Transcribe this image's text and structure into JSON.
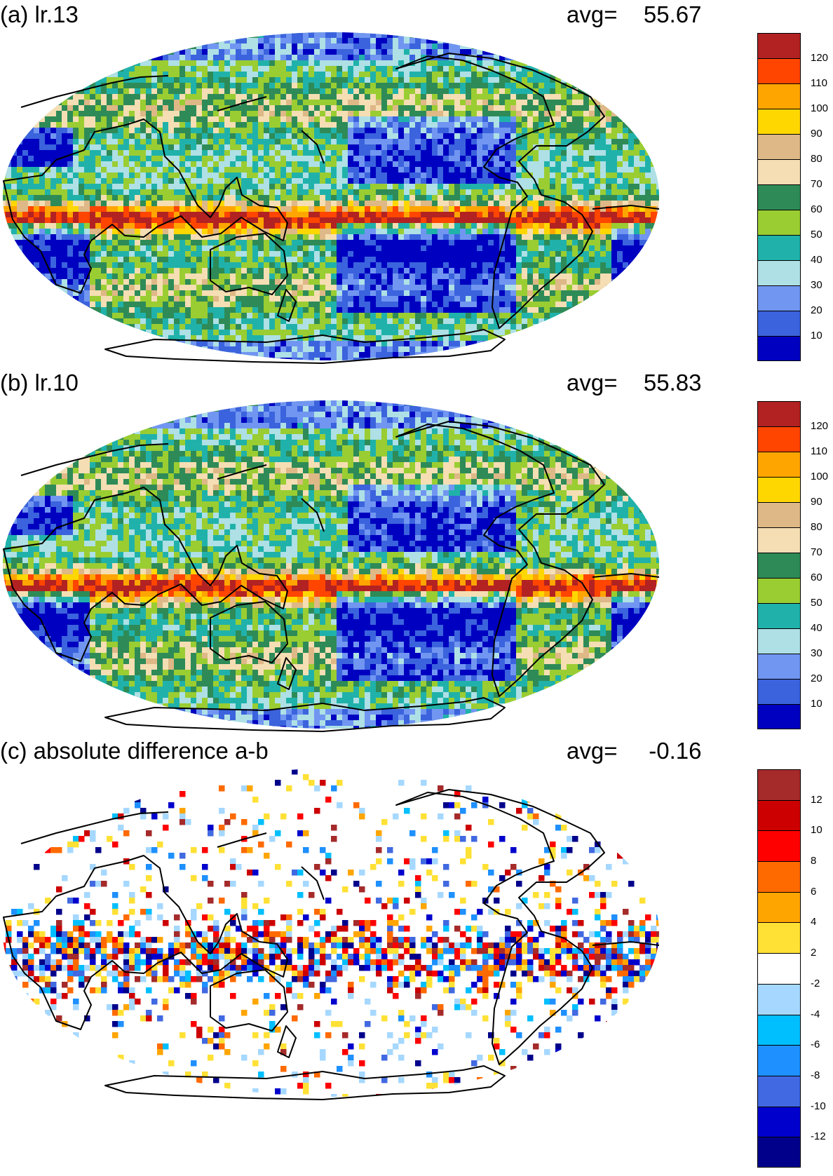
{
  "panels": [
    {
      "id": "a",
      "title": "(a) lr.13",
      "avg_label": "avg=",
      "avg_value": "55.67",
      "kind": "field",
      "colorbar": {
        "colors": [
          "#0000c0",
          "#3b63dd",
          "#7196f1",
          "#aee0e6",
          "#20b2aa",
          "#9acd32",
          "#2e8b57",
          "#f5deb3",
          "#deb887",
          "#ffd700",
          "#ffa500",
          "#ff4500",
          "#b22222"
        ],
        "ticks": [
          "10",
          "20",
          "30",
          "40",
          "50",
          "60",
          "70",
          "80",
          "90",
          "100",
          "110",
          "120"
        ]
      }
    },
    {
      "id": "b",
      "title": "(b) lr.10",
      "avg_label": "avg=",
      "avg_value": "55.83",
      "kind": "field",
      "colorbar": {
        "colors": [
          "#0000c0",
          "#3b63dd",
          "#7196f1",
          "#aee0e6",
          "#20b2aa",
          "#9acd32",
          "#2e8b57",
          "#f5deb3",
          "#deb887",
          "#ffd700",
          "#ffa500",
          "#ff4500",
          "#b22222"
        ],
        "ticks": [
          "10",
          "20",
          "30",
          "40",
          "50",
          "60",
          "70",
          "80",
          "90",
          "100",
          "110",
          "120"
        ]
      }
    },
    {
      "id": "c",
      "title": "(c) absolute difference a-b",
      "avg_label": "avg=",
      "avg_value": "-0.16",
      "kind": "diff",
      "colorbar": {
        "colors": [
          "#00008b",
          "#0000cd",
          "#4169e1",
          "#1e90ff",
          "#00bfff",
          "#a6d8ff",
          "#ffffff",
          "#ffe135",
          "#ffa500",
          "#ff6a00",
          "#ff0000",
          "#cc0000",
          "#a52a2a"
        ],
        "ticks": [
          "-12",
          "-10",
          "-8",
          "-6",
          "-4",
          "-2",
          "2",
          "4",
          "6",
          "8",
          "10",
          "12"
        ]
      }
    }
  ]
}
